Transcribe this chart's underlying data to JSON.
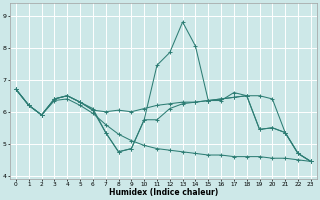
{
  "xlabel": "Humidex (Indice chaleur)",
  "xlim": [
    -0.5,
    23.5
  ],
  "ylim": [
    3.9,
    9.4
  ],
  "yticks": [
    4,
    5,
    6,
    7,
    8,
    9
  ],
  "xticks": [
    0,
    1,
    2,
    3,
    4,
    5,
    6,
    7,
    8,
    9,
    10,
    11,
    12,
    13,
    14,
    15,
    16,
    17,
    18,
    19,
    20,
    21,
    22,
    23
  ],
  "bg_color": "#cde8e8",
  "grid_color": "#ffffff",
  "line_color": "#2d7d74",
  "lines": [
    {
      "x": [
        0,
        1,
        2,
        3,
        4,
        5,
        6,
        7,
        8,
        9,
        10,
        11,
        12,
        13,
        14,
        15,
        16,
        17,
        18,
        19,
        20,
        21,
        22,
        23
      ],
      "y": [
        6.7,
        6.2,
        5.9,
        6.4,
        6.5,
        6.3,
        6.1,
        5.35,
        4.75,
        4.85,
        5.75,
        7.45,
        7.85,
        8.8,
        8.05,
        6.35,
        6.35,
        6.6,
        6.5,
        5.45,
        5.5,
        5.35,
        4.7,
        4.45
      ]
    },
    {
      "x": [
        0,
        1,
        2,
        3,
        4,
        5,
        6,
        7,
        8,
        9,
        10,
        11,
        12,
        13,
        14,
        15,
        16,
        17,
        18,
        19,
        20,
        21,
        22,
        23
      ],
      "y": [
        6.7,
        6.2,
        5.9,
        6.4,
        6.5,
        6.3,
        6.05,
        6.0,
        6.05,
        6.0,
        6.1,
        6.2,
        6.25,
        6.3,
        6.3,
        6.35,
        6.4,
        6.45,
        6.5,
        6.5,
        6.4,
        5.35,
        4.7,
        4.45
      ]
    },
    {
      "x": [
        0,
        1,
        2,
        3,
        4,
        5,
        6,
        7,
        8,
        9,
        10,
        11,
        12,
        13,
        14,
        15,
        16,
        17,
        18,
        19,
        20,
        21,
        22,
        23
      ],
      "y": [
        6.7,
        6.2,
        5.9,
        6.35,
        6.4,
        6.2,
        5.95,
        5.6,
        5.3,
        5.1,
        4.95,
        4.85,
        4.8,
        4.75,
        4.7,
        4.65,
        4.65,
        4.6,
        4.6,
        4.6,
        4.55,
        4.55,
        4.5,
        4.45
      ]
    },
    {
      "x": [
        0,
        1,
        2,
        3,
        4,
        5,
        6,
        7,
        8,
        9,
        10,
        11,
        12,
        13,
        14,
        15,
        16,
        17,
        18,
        19,
        20,
        21,
        22,
        23
      ],
      "y": [
        6.7,
        6.2,
        5.9,
        6.4,
        6.5,
        6.3,
        6.05,
        5.35,
        4.75,
        4.85,
        5.75,
        5.75,
        6.1,
        6.25,
        6.3,
        6.35,
        6.4,
        6.45,
        6.5,
        5.45,
        5.5,
        5.35,
        4.7,
        4.45
      ]
    }
  ]
}
